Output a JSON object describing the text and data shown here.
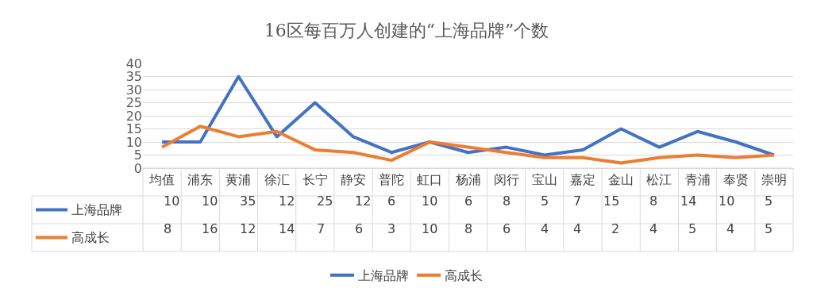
{
  "chart_data": {
    "type": "line",
    "title": "16区每百万人创建的“上海品牌”个数",
    "categories": [
      "均值",
      "浦东",
      "黄浦",
      "徐汇",
      "长宁",
      "静安",
      "普陀",
      "虹口",
      "杨浦",
      "闵行",
      "宝山",
      "嘉定",
      "金山",
      "松江",
      "青浦",
      "奉贤",
      "崇明"
    ],
    "series": [
      {
        "name": "上海品牌",
        "color": "#4472c4",
        "values": [
          10,
          10,
          35,
          12,
          25,
          12,
          6,
          10,
          6,
          8,
          5,
          7,
          15,
          8,
          14,
          10,
          5
        ]
      },
      {
        "name": "高成长",
        "color": "#ed7d31",
        "values": [
          8,
          16,
          12,
          14,
          7,
          6,
          3,
          10,
          8,
          6,
          4,
          4,
          2,
          4,
          5,
          4,
          5
        ]
      }
    ],
    "ylim": [
      0,
      40
    ],
    "yticks": [
      0,
      5,
      10,
      15,
      20,
      25,
      30,
      35,
      40
    ],
    "grid": "y",
    "legend": "bottom",
    "data_labels": true,
    "marker": "none",
    "line_style": "solid"
  }
}
